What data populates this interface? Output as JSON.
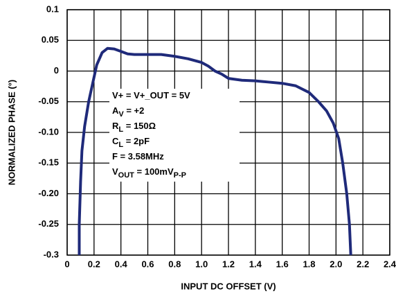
{
  "chart_data": {
    "type": "line",
    "x_label": "INPUT DC OFFSET (V)",
    "y_label": "NORMALIZED PHASE (°)",
    "xlim": [
      0,
      2.4
    ],
    "xticks": [
      0,
      0.2,
      0.4,
      0.6,
      0.8,
      {
        "value": 1.0,
        "label": "1.0"
      },
      1.2,
      1.4,
      1.6,
      1.8,
      {
        "value": 2.0,
        "label": "2.0"
      },
      2.2,
      2.4
    ],
    "ylim": [
      -0.3,
      0.1
    ],
    "yticks": [
      -0.3,
      {
        "value": -0.25,
        "label": "-0.25"
      },
      {
        "value": -0.2,
        "label": "-0.20"
      },
      {
        "value": -0.15,
        "label": "-0.15"
      },
      {
        "value": -0.1,
        "label": "-0.10"
      },
      -0.05,
      0,
      0.05,
      0.1
    ],
    "grid": true,
    "annotation": [
      [
        "V+ = V+_OUT = 5V"
      ],
      [
        "A",
        "V",
        " = +2"
      ],
      [
        "R",
        "L",
        " = 150Ω"
      ],
      [
        "C",
        "L",
        " = 2pF"
      ],
      [
        "F = 3.58MHz"
      ],
      [
        "V",
        "OUT",
        " = 100mV",
        "P-P"
      ]
    ],
    "series": [
      {
        "color": "#1f2a7a",
        "x": [
          0.09,
          0.09,
          0.1,
          0.11,
          0.13,
          0.16,
          0.19,
          0.22,
          0.26,
          0.3,
          0.35,
          0.4,
          0.45,
          0.5,
          0.6,
          0.7,
          0.8,
          0.9,
          1.0,
          1.05,
          1.1,
          1.15,
          1.2,
          1.3,
          1.4,
          1.5,
          1.6,
          1.7,
          1.8,
          1.87,
          1.93,
          1.98,
          2.02,
          2.05,
          2.08,
          2.1,
          2.11
        ],
        "values": [
          -0.3,
          -0.25,
          -0.18,
          -0.13,
          -0.09,
          -0.05,
          -0.02,
          0.01,
          0.03,
          0.037,
          0.036,
          0.032,
          0.028,
          0.027,
          0.027,
          0.027,
          0.024,
          0.02,
          0.014,
          0.008,
          0.0,
          -0.005,
          -0.012,
          -0.015,
          -0.016,
          -0.018,
          -0.02,
          -0.024,
          -0.035,
          -0.05,
          -0.065,
          -0.085,
          -0.11,
          -0.15,
          -0.2,
          -0.25,
          -0.3
        ]
      }
    ]
  }
}
